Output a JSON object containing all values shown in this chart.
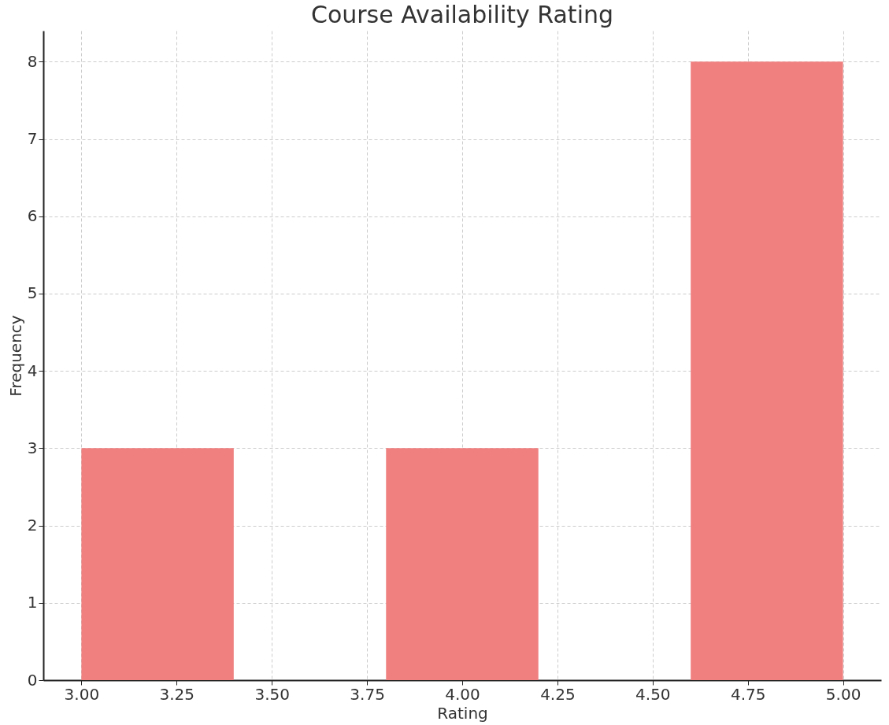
{
  "chart_data": {
    "type": "histogram",
    "title": "Course Availability Rating",
    "xlabel": "Rating",
    "ylabel": "Frequency",
    "bins": [
      3.0,
      3.4,
      3.8,
      4.2,
      4.6,
      5.0
    ],
    "values": [
      3,
      0,
      3,
      0,
      8
    ],
    "color": "#f08080",
    "xlim": [
      2.9,
      5.1
    ],
    "xticks": [
      {
        "value": 3,
        "label": "3.00"
      },
      {
        "value": 3.25,
        "label": "3.25"
      },
      {
        "value": 3.5,
        "label": "3.50"
      },
      {
        "value": 3.75,
        "label": "3.75"
      },
      {
        "value": 4,
        "label": "4.00"
      },
      {
        "value": 4.25,
        "label": "4.25"
      },
      {
        "value": 4.5,
        "label": "4.50"
      },
      {
        "value": 4.75,
        "label": "4.75"
      },
      {
        "value": 5,
        "label": "5.00"
      }
    ],
    "ylim": [
      0,
      8.4
    ],
    "yticks": [
      0,
      1,
      2,
      3,
      4,
      5,
      6,
      7,
      8
    ],
    "grid": true
  }
}
